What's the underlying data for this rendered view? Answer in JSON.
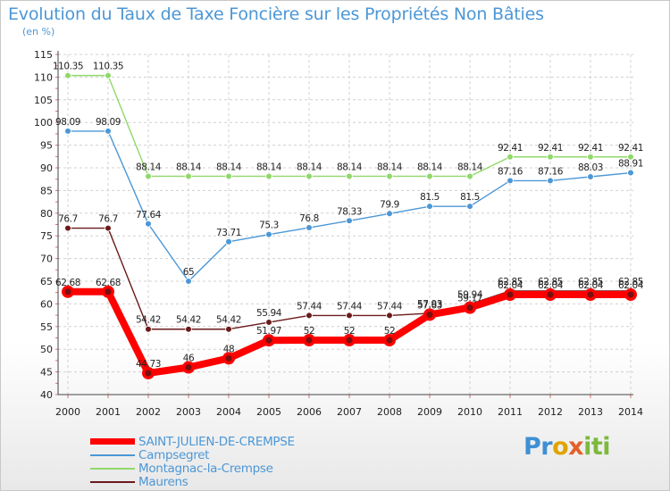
{
  "header": {
    "title": "Evolution du Taux de Taxe Foncière sur les Propriétés Non Bâties",
    "unit": "(en %)"
  },
  "logo": {
    "part1": "Pr",
    "part2": "o",
    "part3": "x",
    "part4": "iti"
  },
  "colors": {
    "accent": "#4c97d6",
    "saint_julien": "#ff0000",
    "campsegret": "#4c97d6",
    "montagnac": "#90d86a",
    "maurens": "#6b1a1a"
  },
  "chart_data": {
    "type": "line",
    "title": "Evolution du Taux de Taxe Foncière sur les Propriétés Non Bâties",
    "ylabel": "(en %)",
    "xlabel": "",
    "ylim": [
      40,
      115
    ],
    "yticks": [
      40,
      45,
      50,
      55,
      60,
      65,
      70,
      75,
      80,
      85,
      90,
      95,
      100,
      105,
      110,
      115
    ],
    "grid": true,
    "categories": [
      "2000",
      "2001",
      "2002",
      "2003",
      "2004",
      "2005",
      "2006",
      "2007",
      "2008",
      "2009",
      "2010",
      "2011",
      "2012",
      "2013",
      "2014"
    ],
    "series": [
      {
        "name": "Montagnac-la-Crempse",
        "color": "#90d86a",
        "values": [
          110.35,
          110.35,
          88.14,
          88.14,
          88.14,
          88.14,
          88.14,
          88.14,
          88.14,
          88.14,
          88.14,
          92.41,
          92.41,
          92.41,
          92.41
        ],
        "labels": [
          "110.35",
          "110.35",
          "88.14",
          "88.14",
          "88.14",
          "88.14",
          "88.14",
          "88.14",
          "88.14",
          "88.14",
          "88.14",
          "92.41",
          "92.41",
          "92.41",
          "92.41"
        ]
      },
      {
        "name": "Campsegret",
        "color": "#4c97d6",
        "values": [
          98.09,
          98.09,
          77.64,
          65,
          73.71,
          75.3,
          76.8,
          78.33,
          79.9,
          81.5,
          81.5,
          87.16,
          87.16,
          88.03,
          88.91
        ],
        "labels": [
          "98.09",
          "98.09",
          "77.64",
          "65",
          "73.71",
          "75.3",
          "76.8",
          "78.33",
          "79.9",
          "81.5",
          "81.5",
          "87.16",
          "87.16",
          "88.03",
          "88.91"
        ]
      },
      {
        "name": "Maurens",
        "color": "#6b1a1a",
        "values": [
          76.7,
          76.7,
          54.42,
          54.42,
          54.42,
          55.94,
          57.44,
          57.44,
          57.44,
          57.93,
          59.94,
          62.85,
          62.85,
          62.85,
          62.85
        ],
        "labels": [
          "76.7",
          "76.7",
          "54.42",
          "54.42",
          "54.42",
          "55.94",
          "57.44",
          "57.44",
          "57.44",
          "57.93",
          "59.94",
          "62.85",
          "62.85",
          "62.85",
          "62.85"
        ]
      },
      {
        "name": "SAINT-JULIEN-DE-CREMPSE",
        "color": "#ff0000",
        "values": [
          62.68,
          62.68,
          44.73,
          46,
          48,
          51.97,
          52,
          52,
          52,
          57.63,
          59.17,
          62.04,
          62.04,
          62.04,
          62.04
        ],
        "labels": [
          "62.68",
          "62.68",
          "44.73",
          "46",
          "48",
          "51.97",
          "52",
          "52",
          "52",
          "57.63",
          "59.17",
          "62.04",
          "62.04",
          "62.04",
          "62.04"
        ]
      }
    ],
    "legend": {
      "position": "bottom-left",
      "entries": [
        "SAINT-JULIEN-DE-CREMPSE",
        "Campsegret",
        "Montagnac-la-Crempse",
        "Maurens"
      ]
    }
  }
}
